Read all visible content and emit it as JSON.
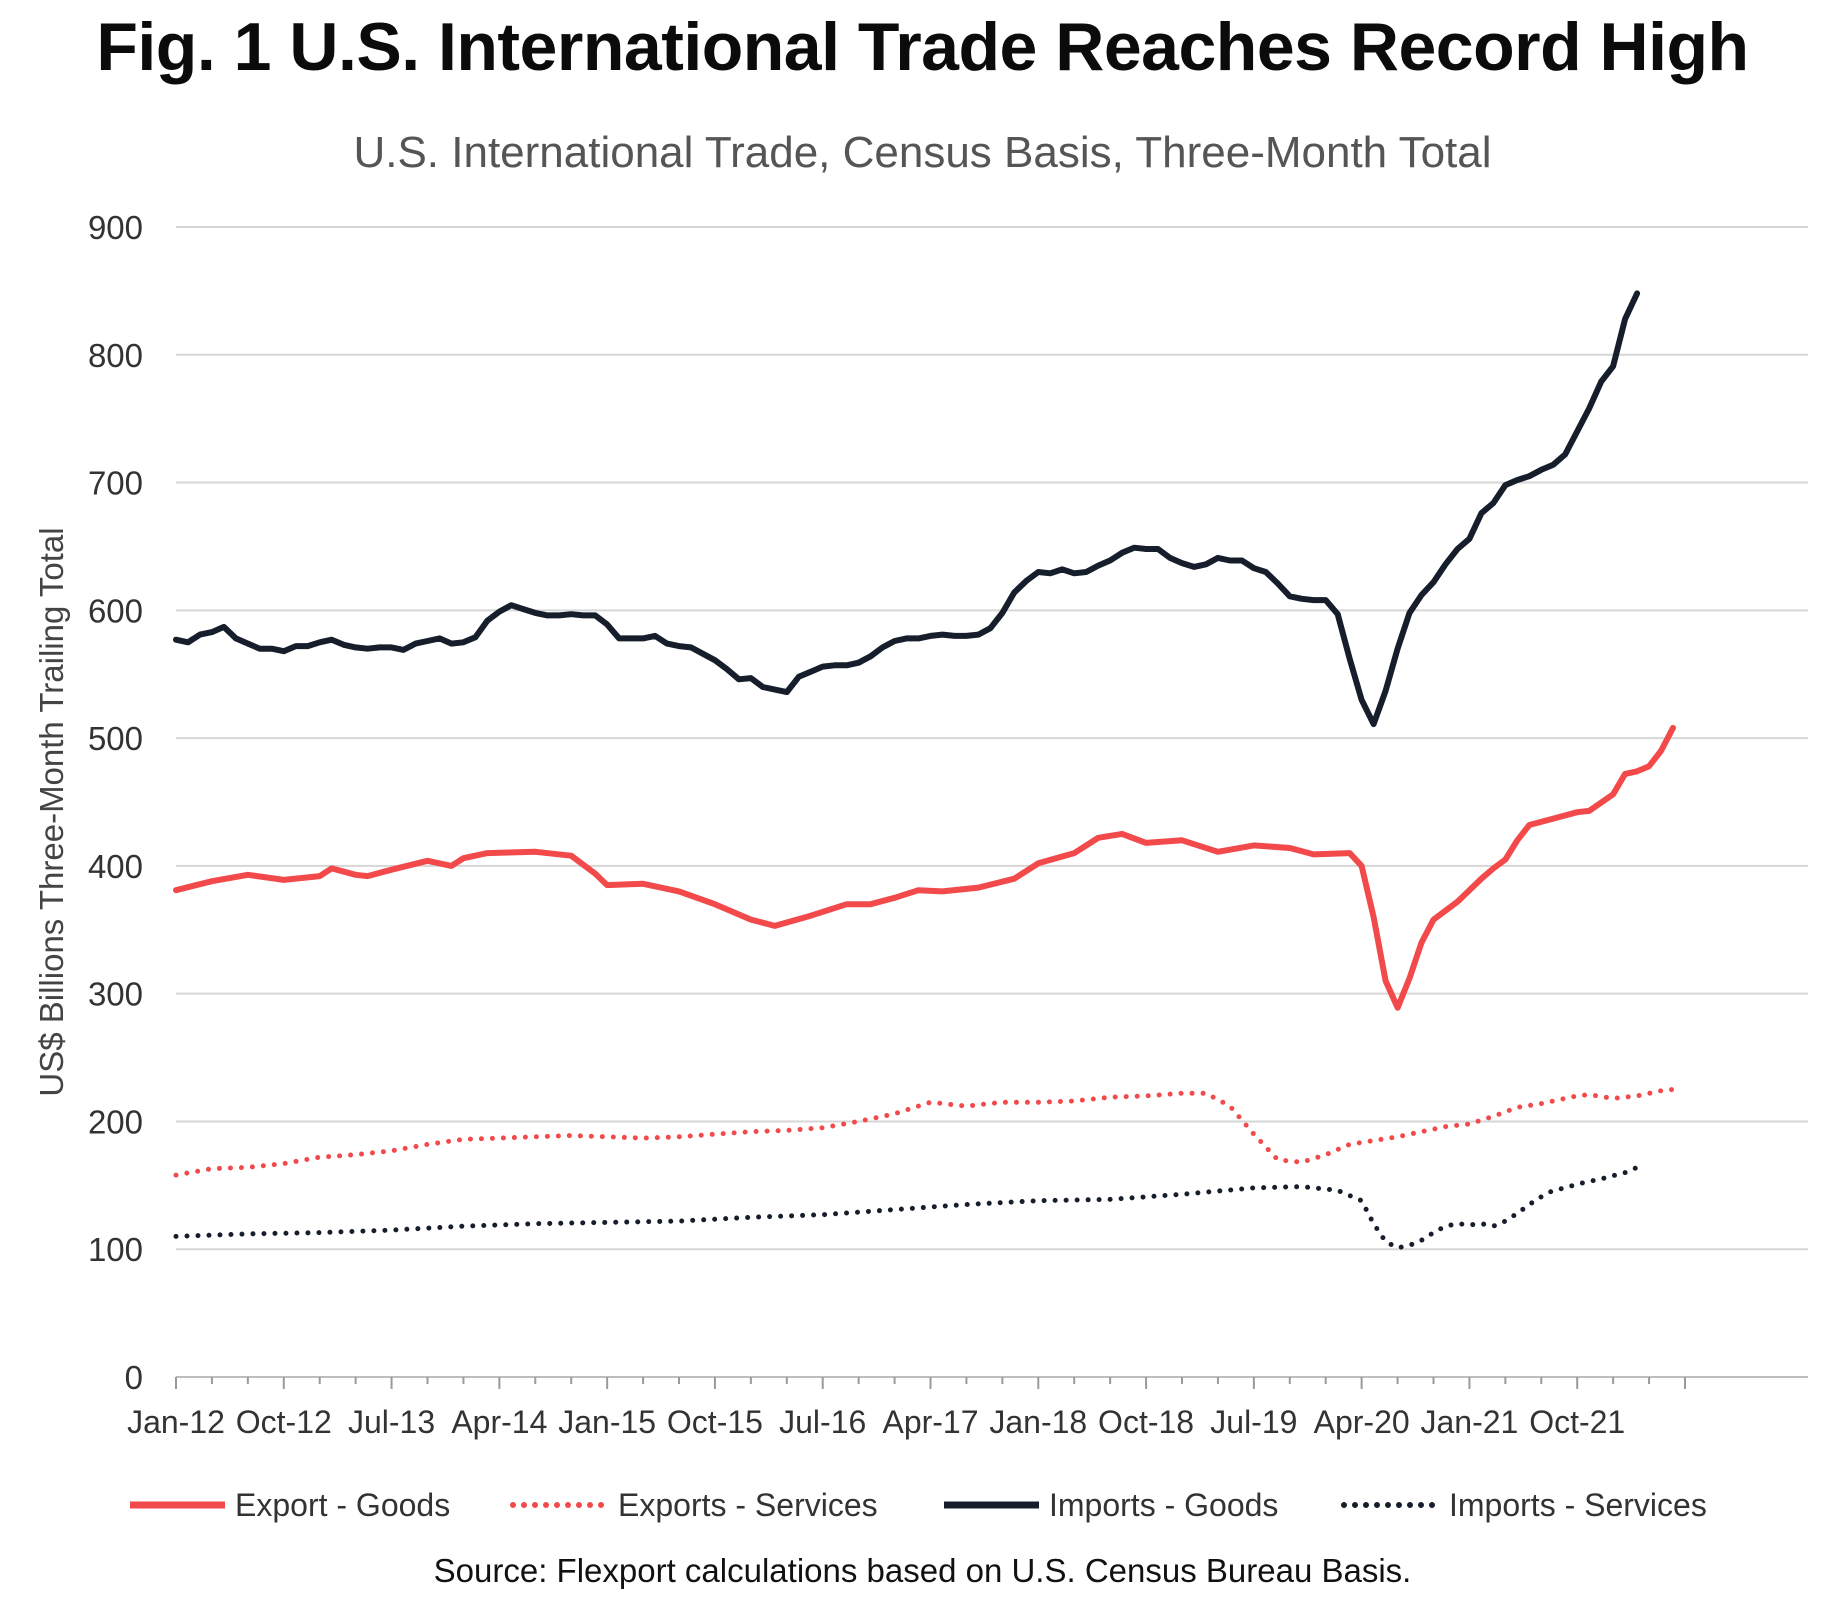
{
  "chart_data": {
    "type": "line",
    "title": "Fig. 1 U.S. International Trade Reaches Record High",
    "subtitle": "U.S. International Trade, Census Basis, Three-Month Total",
    "ylabel": "US$ Billions Three-Month Trailing Total",
    "xlabel": "",
    "ylim": [
      0,
      900
    ],
    "yticks": [
      0,
      100,
      200,
      300,
      400,
      500,
      600,
      700,
      800,
      900
    ],
    "x_start": "Jan-12",
    "x_end": "Apr-22",
    "xtick_labels": [
      "Jan-12",
      "Oct-12",
      "Jul-13",
      "Apr-14",
      "Jan-15",
      "Oct-15",
      "Jul-16",
      "Apr-17",
      "Jan-18",
      "Oct-18",
      "Jul-19",
      "Apr-20",
      "Jan-21",
      "Oct-21"
    ],
    "xtick_index": [
      0,
      9,
      18,
      27,
      36,
      45,
      54,
      63,
      72,
      81,
      90,
      99,
      108,
      117
    ],
    "grid": true,
    "legend_position": "bottom",
    "series": [
      {
        "name": "Export - Goods",
        "color": "#f2494b",
        "style": "solid",
        "points": [
          [
            0,
            381
          ],
          [
            3,
            388
          ],
          [
            6,
            393
          ],
          [
            9,
            389
          ],
          [
            12,
            392
          ],
          [
            13,
            398
          ],
          [
            15,
            393
          ],
          [
            16,
            392
          ],
          [
            18,
            397
          ],
          [
            21,
            404
          ],
          [
            23,
            400
          ],
          [
            24,
            406
          ],
          [
            26,
            410
          ],
          [
            30,
            411
          ],
          [
            33,
            408
          ],
          [
            35,
            394
          ],
          [
            36,
            385
          ],
          [
            39,
            386
          ],
          [
            42,
            380
          ],
          [
            45,
            370
          ],
          [
            48,
            358
          ],
          [
            50,
            353
          ],
          [
            53,
            361
          ],
          [
            56,
            370
          ],
          [
            58,
            370
          ],
          [
            60,
            375
          ],
          [
            62,
            381
          ],
          [
            64,
            380
          ],
          [
            67,
            383
          ],
          [
            70,
            390
          ],
          [
            72,
            402
          ],
          [
            75,
            410
          ],
          [
            77,
            422
          ],
          [
            79,
            425
          ],
          [
            81,
            418
          ],
          [
            84,
            420
          ],
          [
            87,
            411
          ],
          [
            90,
            416
          ],
          [
            93,
            414
          ],
          [
            95,
            409
          ],
          [
            98,
            410
          ],
          [
            99,
            400
          ],
          [
            100,
            360
          ],
          [
            101,
            310
          ],
          [
            102,
            289
          ],
          [
            103,
            312
          ],
          [
            104,
            340
          ],
          [
            105,
            358
          ],
          [
            107,
            372
          ],
          [
            109,
            390
          ],
          [
            110,
            398
          ],
          [
            111,
            405
          ],
          [
            112,
            420
          ],
          [
            113,
            432
          ],
          [
            115,
            437
          ],
          [
            117,
            442
          ],
          [
            118,
            443
          ],
          [
            120,
            456
          ],
          [
            121,
            472
          ],
          [
            122,
            474
          ],
          [
            123,
            478
          ],
          [
            124,
            490
          ],
          [
            125,
            508
          ]
        ]
      },
      {
        "name": "Exports - Services",
        "color": "#f2494b",
        "style": "dotted",
        "points": [
          [
            0,
            158
          ],
          [
            3,
            163
          ],
          [
            6,
            164
          ],
          [
            9,
            167
          ],
          [
            12,
            172
          ],
          [
            15,
            174
          ],
          [
            18,
            177
          ],
          [
            21,
            182
          ],
          [
            24,
            186
          ],
          [
            27,
            187
          ],
          [
            30,
            188
          ],
          [
            33,
            189
          ],
          [
            36,
            188
          ],
          [
            39,
            187
          ],
          [
            42,
            188
          ],
          [
            45,
            190
          ],
          [
            48,
            192
          ],
          [
            51,
            193
          ],
          [
            54,
            195
          ],
          [
            57,
            200
          ],
          [
            60,
            206
          ],
          [
            63,
            215
          ],
          [
            66,
            212
          ],
          [
            69,
            215
          ],
          [
            72,
            215
          ],
          [
            75,
            216
          ],
          [
            78,
            219
          ],
          [
            81,
            220
          ],
          [
            84,
            222
          ],
          [
            86,
            222
          ],
          [
            88,
            212
          ],
          [
            90,
            190
          ],
          [
            92,
            170
          ],
          [
            94,
            168
          ],
          [
            96,
            174
          ],
          [
            98,
            182
          ],
          [
            100,
            185
          ],
          [
            102,
            188
          ],
          [
            104,
            192
          ],
          [
            106,
            196
          ],
          [
            108,
            198
          ],
          [
            110,
            204
          ],
          [
            112,
            211
          ],
          [
            114,
            214
          ],
          [
            116,
            218
          ],
          [
            117,
            220
          ],
          [
            118,
            221
          ],
          [
            120,
            218
          ],
          [
            122,
            220
          ],
          [
            124,
            224
          ],
          [
            125,
            225
          ]
        ]
      },
      {
        "name": "Imports - Goods",
        "color": "#161d2b",
        "style": "solid",
        "points": [
          [
            0,
            577
          ],
          [
            1,
            575
          ],
          [
            2,
            581
          ],
          [
            3,
            583
          ],
          [
            4,
            587
          ],
          [
            5,
            578
          ],
          [
            6,
            574
          ],
          [
            7,
            570
          ],
          [
            8,
            570
          ],
          [
            9,
            568
          ],
          [
            10,
            572
          ],
          [
            11,
            572
          ],
          [
            12,
            575
          ],
          [
            13,
            577
          ],
          [
            14,
            573
          ],
          [
            15,
            571
          ],
          [
            16,
            570
          ],
          [
            17,
            571
          ],
          [
            18,
            571
          ],
          [
            19,
            569
          ],
          [
            20,
            574
          ],
          [
            21,
            576
          ],
          [
            22,
            578
          ],
          [
            23,
            574
          ],
          [
            24,
            575
          ],
          [
            25,
            579
          ],
          [
            26,
            592
          ],
          [
            27,
            599
          ],
          [
            28,
            604
          ],
          [
            29,
            601
          ],
          [
            30,
            598
          ],
          [
            31,
            596
          ],
          [
            32,
            596
          ],
          [
            33,
            597
          ],
          [
            34,
            596
          ],
          [
            35,
            596
          ],
          [
            36,
            589
          ],
          [
            37,
            578
          ],
          [
            38,
            578
          ],
          [
            39,
            578
          ],
          [
            40,
            580
          ],
          [
            41,
            574
          ],
          [
            42,
            572
          ],
          [
            43,
            571
          ],
          [
            44,
            566
          ],
          [
            45,
            561
          ],
          [
            46,
            554
          ],
          [
            47,
            546
          ],
          [
            48,
            547
          ],
          [
            49,
            540
          ],
          [
            50,
            538
          ],
          [
            51,
            536
          ],
          [
            52,
            548
          ],
          [
            53,
            552
          ],
          [
            54,
            556
          ],
          [
            55,
            557
          ],
          [
            56,
            557
          ],
          [
            57,
            559
          ],
          [
            58,
            564
          ],
          [
            59,
            571
          ],
          [
            60,
            576
          ],
          [
            61,
            578
          ],
          [
            62,
            578
          ],
          [
            63,
            580
          ],
          [
            64,
            581
          ],
          [
            65,
            580
          ],
          [
            66,
            580
          ],
          [
            67,
            581
          ],
          [
            68,
            586
          ],
          [
            69,
            598
          ],
          [
            70,
            614
          ],
          [
            71,
            623
          ],
          [
            72,
            630
          ],
          [
            73,
            629
          ],
          [
            74,
            632
          ],
          [
            75,
            629
          ],
          [
            76,
            630
          ],
          [
            77,
            635
          ],
          [
            78,
            639
          ],
          [
            79,
            645
          ],
          [
            80,
            649
          ],
          [
            81,
            648
          ],
          [
            82,
            648
          ],
          [
            83,
            641
          ],
          [
            84,
            637
          ],
          [
            85,
            634
          ],
          [
            86,
            636
          ],
          [
            87,
            641
          ],
          [
            88,
            639
          ],
          [
            89,
            639
          ],
          [
            90,
            633
          ],
          [
            91,
            630
          ],
          [
            92,
            621
          ],
          [
            93,
            611
          ],
          [
            94,
            609
          ],
          [
            95,
            608
          ],
          [
            96,
            608
          ],
          [
            97,
            597
          ],
          [
            98,
            562
          ],
          [
            99,
            530
          ],
          [
            100,
            511
          ],
          [
            101,
            537
          ],
          [
            102,
            570
          ],
          [
            103,
            598
          ],
          [
            104,
            612
          ],
          [
            105,
            622
          ],
          [
            106,
            636
          ],
          [
            107,
            648
          ],
          [
            108,
            656
          ],
          [
            109,
            676
          ],
          [
            110,
            684
          ],
          [
            111,
            698
          ],
          [
            112,
            702
          ],
          [
            113,
            705
          ],
          [
            114,
            710
          ],
          [
            115,
            714
          ],
          [
            116,
            722
          ],
          [
            117,
            740
          ],
          [
            118,
            758
          ],
          [
            119,
            779
          ],
          [
            120,
            791
          ],
          [
            121,
            828
          ],
          [
            122,
            848
          ]
        ]
      },
      {
        "name": "Imports - Services",
        "color": "#161d2b",
        "style": "dotted",
        "points": [
          [
            0,
            110
          ],
          [
            6,
            112
          ],
          [
            12,
            113
          ],
          [
            18,
            115
          ],
          [
            24,
            118
          ],
          [
            30,
            120
          ],
          [
            36,
            121
          ],
          [
            42,
            122
          ],
          [
            48,
            125
          ],
          [
            54,
            127
          ],
          [
            60,
            131
          ],
          [
            66,
            135
          ],
          [
            72,
            138
          ],
          [
            78,
            139
          ],
          [
            84,
            143
          ],
          [
            90,
            148
          ],
          [
            94,
            149
          ],
          [
            97,
            146
          ],
          [
            99,
            138
          ],
          [
            100,
            120
          ],
          [
            101,
            106
          ],
          [
            102,
            101
          ],
          [
            103,
            103
          ],
          [
            104,
            107
          ],
          [
            105,
            113
          ],
          [
            106,
            118
          ],
          [
            107,
            120
          ],
          [
            108,
            119
          ],
          [
            109,
            120
          ],
          [
            110,
            118
          ],
          [
            111,
            122
          ],
          [
            112,
            128
          ],
          [
            113,
            135
          ],
          [
            114,
            141
          ],
          [
            115,
            146
          ],
          [
            116,
            148
          ],
          [
            117,
            151
          ],
          [
            119,
            155
          ],
          [
            121,
            160
          ],
          [
            122,
            164
          ]
        ]
      }
    ]
  },
  "source_note": "Source: Flexport calculations based on U.S. Census Bureau Basis."
}
